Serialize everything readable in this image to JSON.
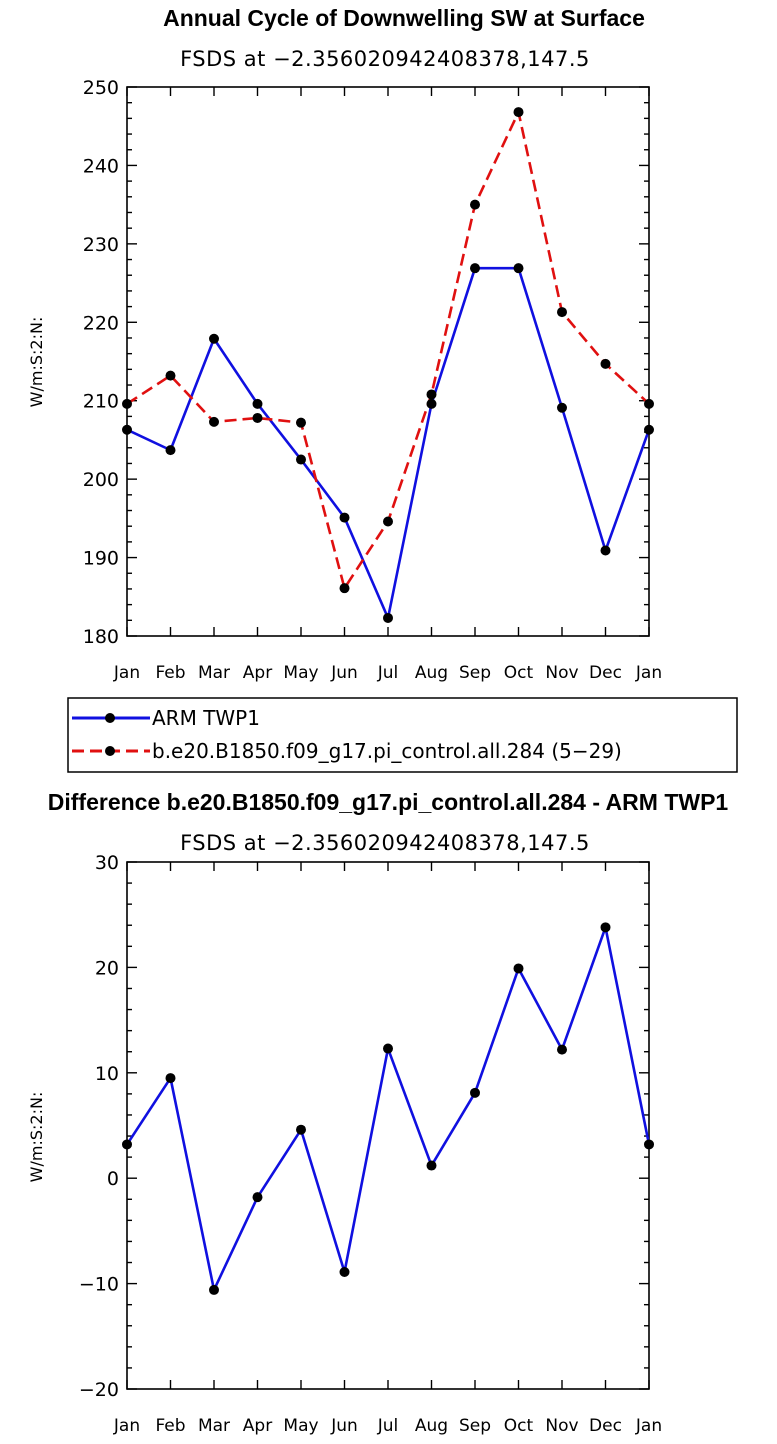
{
  "chart_data": [
    {
      "type": "line",
      "title": "Annual Cycle of Downwelling SW at Surface",
      "subtitle": "FSDS at −2.356020942408378,147.5",
      "ylabel": "W/m:S:2:N:",
      "xlabel": "",
      "categories": [
        "Jan",
        "Feb",
        "Mar",
        "Apr",
        "May",
        "Jun",
        "Jul",
        "Aug",
        "Sep",
        "Oct",
        "Nov",
        "Dec",
        "Jan"
      ],
      "ylim": [
        180,
        250
      ],
      "yticks": [
        180,
        190,
        200,
        210,
        220,
        230,
        240,
        250
      ],
      "ytick_labels": [
        "180",
        "190",
        "200",
        "210",
        "220",
        "230",
        "240",
        "250"
      ],
      "series": [
        {
          "name": "ARM TWP1",
          "color": "#1010e0",
          "style": "solid",
          "values": [
            206.3,
            203.7,
            217.9,
            209.6,
            202.5,
            195.1,
            182.3,
            209.6,
            226.9,
            226.9,
            209.1,
            190.9,
            206.3
          ]
        },
        {
          "name": "b.e20.B1850.f09_g17.pi_control.all.284 (5−29)",
          "color": "#e01010",
          "style": "dashed",
          "values": [
            209.6,
            213.2,
            207.3,
            207.8,
            207.2,
            186.1,
            194.6,
            210.8,
            235.0,
            246.8,
            221.3,
            214.7,
            209.6
          ]
        }
      ],
      "legend": {
        "placement": "bottom",
        "entries": [
          "ARM TWP1",
          "b.e20.B1850.f09_g17.pi_control.all.284 (5−29)"
        ]
      }
    },
    {
      "type": "line",
      "title": "Difference b.e20.B1850.f09_g17.pi_control.all.284 - ARM TWP1",
      "subtitle": "FSDS at −2.356020942408378,147.5",
      "ylabel": "W/m:S:2:N:",
      "xlabel": "",
      "categories": [
        "Jan",
        "Feb",
        "Mar",
        "Apr",
        "May",
        "Jun",
        "Jul",
        "Aug",
        "Sep",
        "Oct",
        "Nov",
        "Dec",
        "Jan"
      ],
      "ylim": [
        -20,
        30
      ],
      "yticks": [
        -20,
        -10,
        0,
        10,
        20,
        30
      ],
      "ytick_labels": [
        "−20",
        "−10",
        "0",
        "10",
        "20",
        "30"
      ],
      "series": [
        {
          "name": "Difference",
          "color": "#1010e0",
          "style": "solid",
          "values": [
            3.2,
            9.5,
            -10.6,
            -1.8,
            4.6,
            -8.9,
            12.3,
            1.2,
            8.1,
            19.9,
            12.2,
            23.8,
            3.2
          ]
        }
      ]
    }
  ]
}
